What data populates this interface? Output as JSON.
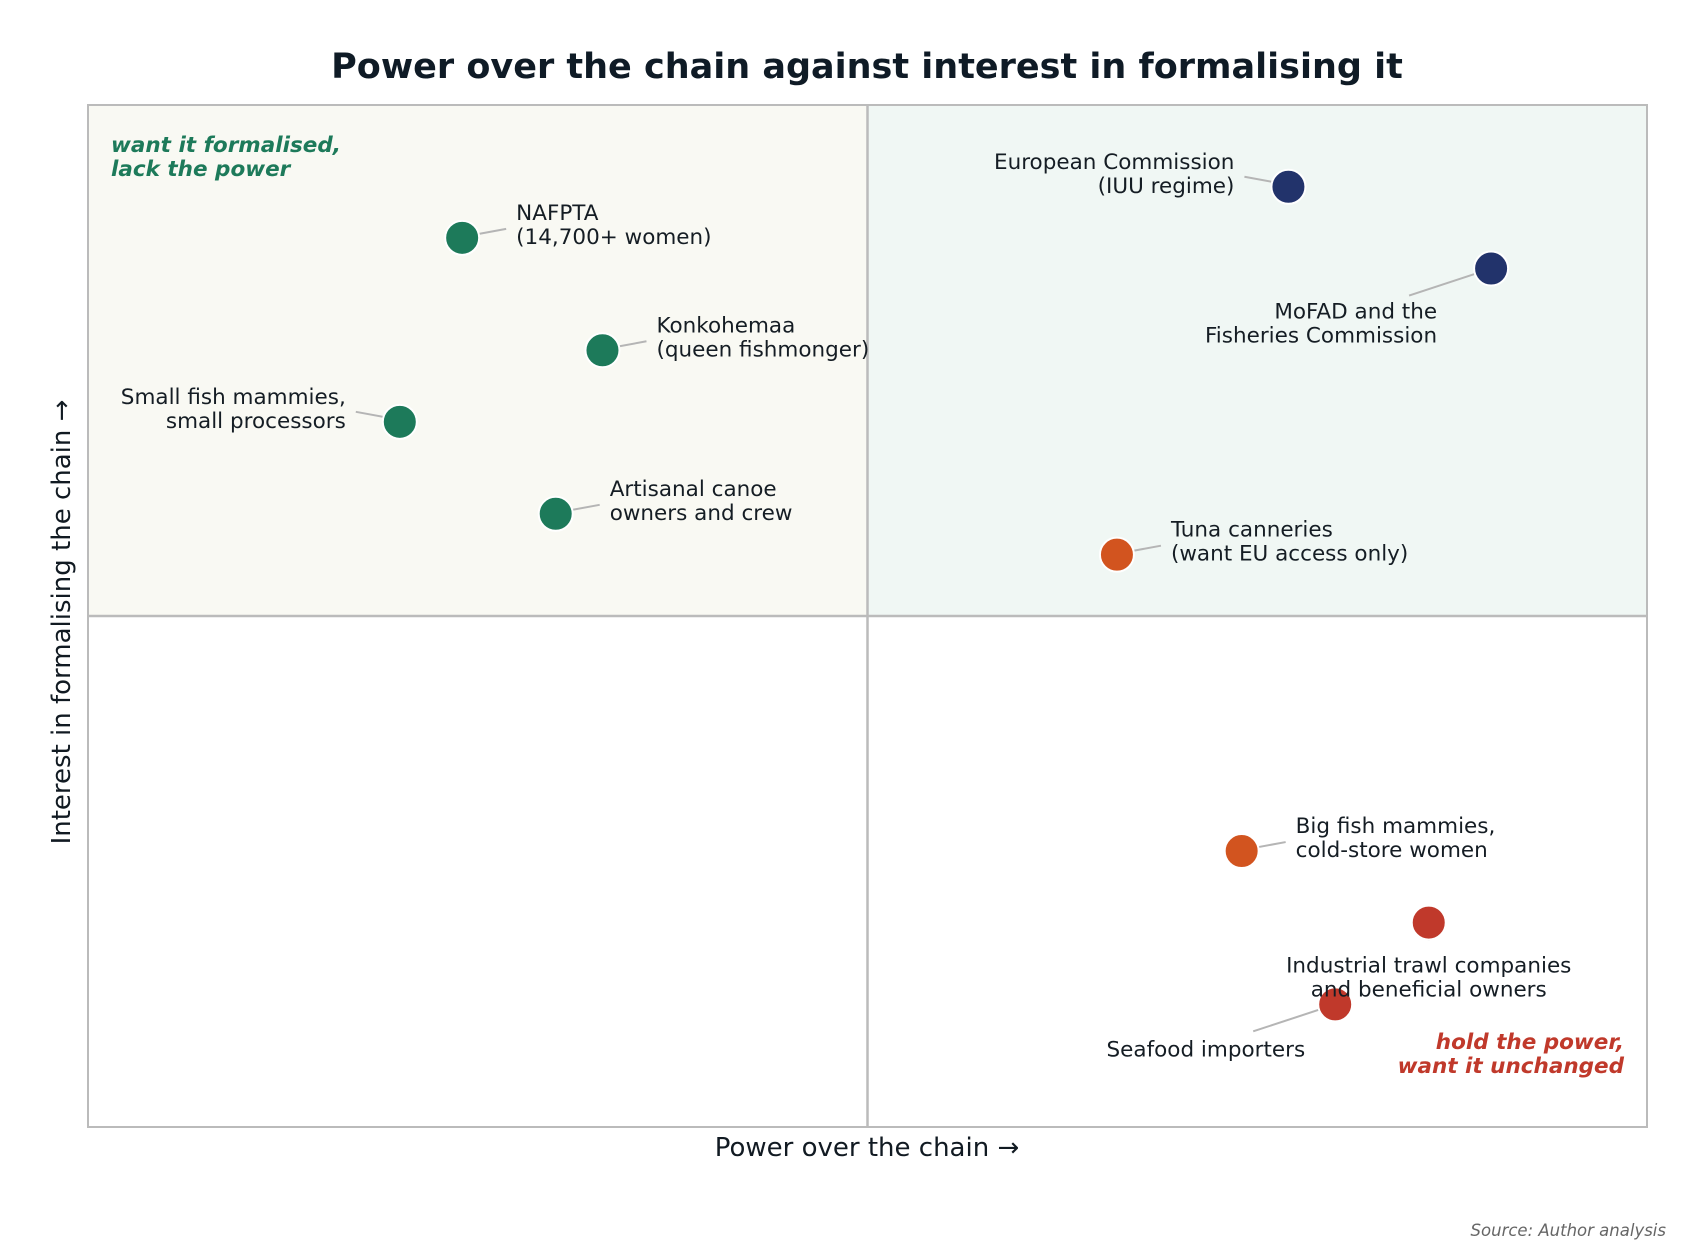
{
  "chart_data": {
    "type": "scatter",
    "title": "Power over the chain against interest in formalising it",
    "xlabel": "Power over the chain  →",
    "ylabel": "Interest in formalising the chain  →",
    "xlim": [
      0,
      10
    ],
    "ylim": [
      0,
      10
    ],
    "divider": {
      "x": 5,
      "y": 5
    },
    "grid": false,
    "colors": {
      "green": "#1d7a5a",
      "navy": "#22336b",
      "orange": "#d2541f",
      "red": "#c0392b",
      "quadrant_top_left": "#f9f9f3",
      "quadrant_top_right": "#f0f7f4",
      "frame": "#bbbbbb",
      "leader": "#b5b5b5"
    },
    "quadrant_annotations": [
      {
        "lines": [
          "want it formalised,",
          "lack the power"
        ],
        "color": "#1d7a5a",
        "placement": "top-left"
      },
      {
        "lines": [
          "hold the power,",
          "want it unchanged"
        ],
        "color": "#c0392b",
        "placement": "bottom-right"
      }
    ],
    "points": [
      {
        "label": [
          "NAFPTA",
          "(14,700+ women)"
        ],
        "x": 2.4,
        "y": 8.7,
        "color": "#1d7a5a",
        "label_side": "right"
      },
      {
        "label": [
          "Konkohemaa",
          "(queen fishmonger)"
        ],
        "x": 3.3,
        "y": 7.6,
        "color": "#1d7a5a",
        "label_side": "right"
      },
      {
        "label": [
          "Small fish mammies,",
          "small processors"
        ],
        "x": 2.0,
        "y": 6.9,
        "color": "#1d7a5a",
        "label_side": "left"
      },
      {
        "label": [
          "Artisanal canoe",
          "owners and crew"
        ],
        "x": 3.0,
        "y": 6.0,
        "color": "#1d7a5a",
        "label_side": "right"
      },
      {
        "label": [
          "European Commission",
          "(IUU regime)"
        ],
        "x": 7.7,
        "y": 9.2,
        "color": "#22336b",
        "label_side": "left"
      },
      {
        "label": [
          "MoFAD and the",
          "Fisheries Commission"
        ],
        "x": 9.0,
        "y": 8.4,
        "color": "#22336b",
        "label_side": "below-left"
      },
      {
        "label": [
          "Tuna canneries",
          "(want EU access only)"
        ],
        "x": 6.6,
        "y": 5.6,
        "color": "#d2541f",
        "label_side": "right"
      },
      {
        "label": [
          "Big fish mammies,",
          "cold-store women"
        ],
        "x": 7.4,
        "y": 2.7,
        "color": "#d2541f",
        "label_side": "right"
      },
      {
        "label": [
          "Industrial trawl companies",
          "and beneficial owners"
        ],
        "x": 8.6,
        "y": 2.0,
        "color": "#c0392b",
        "label_side": "below"
      },
      {
        "label": [
          "Seafood importers"
        ],
        "x": 8.0,
        "y": 1.2,
        "color": "#c0392b",
        "label_side": "below-left"
      }
    ]
  },
  "source": "Source: Author analysis"
}
